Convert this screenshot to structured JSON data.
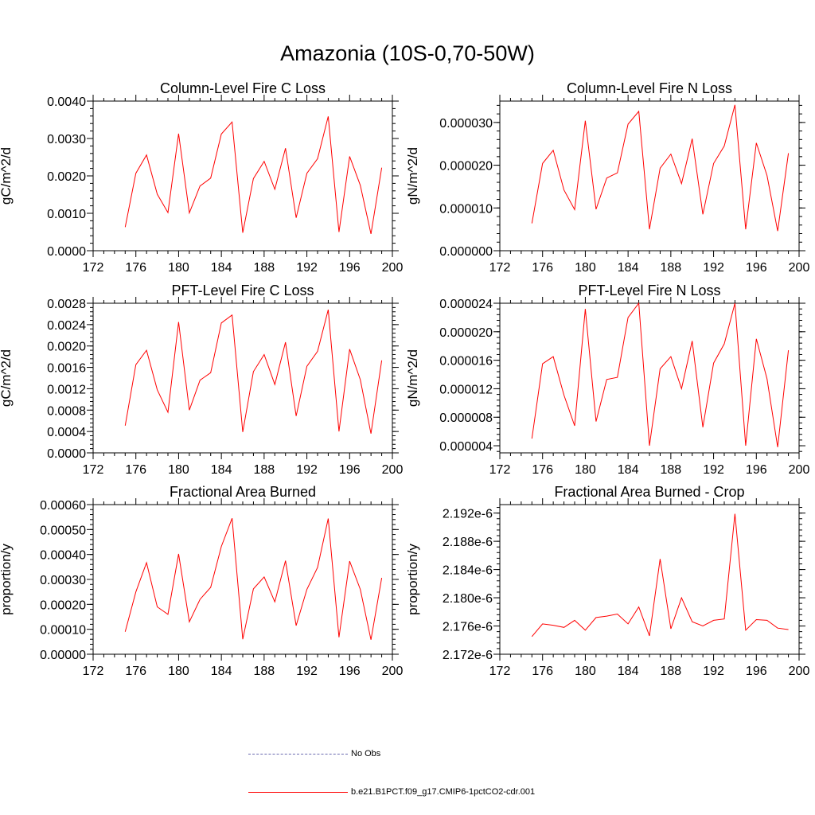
{
  "figure": {
    "title": "Amazonia (10S-0,70-50W)"
  },
  "colors": {
    "model": "#ff0000",
    "obs": "#6a6aaf",
    "axis": "#000000"
  },
  "legend": [
    {
      "label": "No Obs",
      "style": "dashed",
      "color": "#6a6aaf"
    },
    {
      "label": "b.e21.B1PCT.f09_g17.CMIP6-1pctCO2-cdr.001",
      "style": "solid",
      "color": "#ff0000"
    }
  ],
  "chart_data": [
    {
      "type": "line",
      "title": "Column-Level Fire C Loss",
      "ylabel": "gC/m^2/d",
      "xlim": [
        172,
        200
      ],
      "ylim": [
        0,
        0.004
      ],
      "xticks": [
        "172",
        "176",
        "180",
        "184",
        "188",
        "192",
        "196",
        "200"
      ],
      "yticks": [
        "0.0000",
        "0.0010",
        "0.0020",
        "0.0030",
        "0.0040"
      ],
      "x": [
        175,
        176,
        177,
        178,
        179,
        180,
        181,
        182,
        183,
        184,
        185,
        186,
        187,
        188,
        189,
        190,
        191,
        192,
        193,
        194,
        195,
        196,
        197,
        198,
        199
      ],
      "series": [
        {
          "values": [
            0.00063,
            0.00207,
            0.00256,
            0.00151,
            0.00102,
            0.00313,
            0.00101,
            0.00173,
            0.00194,
            0.00312,
            0.00344,
            0.00048,
            0.00193,
            0.00239,
            0.00164,
            0.00274,
            0.00088,
            0.00207,
            0.00246,
            0.00359,
            0.0005,
            0.00252,
            0.00175,
            0.00045,
            0.00222
          ]
        }
      ]
    },
    {
      "type": "line",
      "title": "Column-Level Fire N Loss",
      "ylabel": "gN/m^2/d",
      "xlim": [
        172,
        200
      ],
      "ylim": [
        0,
        3.5e-05
      ],
      "xticks": [
        "172",
        "176",
        "180",
        "184",
        "188",
        "192",
        "196",
        "200"
      ],
      "yticks": [
        "0.000000",
        "0.000010",
        "0.000020",
        "0.000030"
      ],
      "x": [
        175,
        176,
        177,
        178,
        179,
        180,
        181,
        182,
        183,
        184,
        185,
        186,
        187,
        188,
        189,
        190,
        191,
        192,
        193,
        194,
        195,
        196,
        197,
        198,
        199
      ],
      "series": [
        {
          "values": [
            6.4e-06,
            2.04e-05,
            2.35e-05,
            1.42e-05,
            9.6e-06,
            3.04e-05,
            9.7e-06,
            1.7e-05,
            1.82e-05,
            2.96e-05,
            3.26e-05,
            5e-06,
            1.93e-05,
            2.26e-05,
            1.57e-05,
            2.62e-05,
            8.5e-06,
            2.04e-05,
            2.45e-05,
            3.41e-05,
            5e-06,
            2.52e-05,
            1.76e-05,
            4.6e-06,
            2.28e-05
          ]
        }
      ]
    },
    {
      "type": "line",
      "title": "PFT-Level Fire C Loss",
      "ylabel": "gC/m^2/d",
      "xlim": [
        172,
        200
      ],
      "ylim": [
        0,
        0.0028
      ],
      "xticks": [
        "172",
        "176",
        "180",
        "184",
        "188",
        "192",
        "196",
        "200"
      ],
      "yticks": [
        "0.0000",
        "0.0004",
        "0.0008",
        "0.0012",
        "0.0016",
        "0.0020",
        "0.0024",
        "0.0028"
      ],
      "x": [
        175,
        176,
        177,
        178,
        179,
        180,
        181,
        182,
        183,
        184,
        185,
        186,
        187,
        188,
        189,
        190,
        191,
        192,
        193,
        194,
        195,
        196,
        197,
        198,
        199
      ],
      "series": [
        {
          "values": [
            0.00051,
            0.00165,
            0.00192,
            0.00118,
            0.00076,
            0.00245,
            0.0008,
            0.00136,
            0.0015,
            0.00243,
            0.00258,
            0.00039,
            0.00152,
            0.00184,
            0.00128,
            0.00207,
            0.00069,
            0.00162,
            0.0019,
            0.00268,
            0.0004,
            0.00194,
            0.00137,
            0.00036,
            0.00173
          ]
        }
      ]
    },
    {
      "type": "line",
      "title": "PFT-Level Fire N Loss",
      "ylabel": "gN/m^2/d",
      "xlim": [
        172,
        200
      ],
      "ylim": [
        3e-06,
        2.4e-05
      ],
      "xticks": [
        "172",
        "176",
        "180",
        "184",
        "188",
        "192",
        "196",
        "200"
      ],
      "yticks": [
        "0.000004",
        "0.000008",
        "0.000012",
        "0.000016",
        "0.000020",
        "0.000024"
      ],
      "x": [
        175,
        176,
        177,
        178,
        179,
        180,
        181,
        182,
        183,
        184,
        185,
        186,
        187,
        188,
        189,
        190,
        191,
        192,
        193,
        194,
        195,
        196,
        197,
        198,
        199
      ],
      "series": [
        {
          "values": [
            5e-06,
            1.55e-05,
            1.65e-05,
            1.11e-05,
            6.8e-06,
            2.32e-05,
            7.4e-06,
            1.33e-05,
            1.36e-05,
            2.2e-05,
            2.4e-05,
            4e-06,
            1.48e-05,
            1.65e-05,
            1.2e-05,
            1.87e-05,
            6.6e-06,
            1.56e-05,
            1.83e-05,
            2.4e-05,
            4e-06,
            1.9e-05,
            1.34e-05,
            3.8e-06,
            1.74e-05
          ]
        }
      ]
    },
    {
      "type": "line",
      "title": "Fractional Area Burned",
      "ylabel": "proportion/y",
      "xlim": [
        172,
        200
      ],
      "ylim": [
        0,
        0.0006
      ],
      "xticks": [
        "172",
        "176",
        "180",
        "184",
        "188",
        "192",
        "196",
        "200"
      ],
      "yticks": [
        "0.00000",
        "0.00010",
        "0.00020",
        "0.00030",
        "0.00040",
        "0.00050",
        "0.00060"
      ],
      "x": [
        175,
        176,
        177,
        178,
        179,
        180,
        181,
        182,
        183,
        184,
        185,
        186,
        187,
        188,
        189,
        190,
        191,
        192,
        193,
        194,
        195,
        196,
        197,
        198,
        199
      ],
      "series": [
        {
          "values": [
            9e-05,
            0.00025,
            0.000367,
            0.00019,
            0.00016,
            0.000402,
            0.00013,
            0.00022,
            0.000268,
            0.000432,
            0.000545,
            6e-05,
            0.000262,
            0.00031,
            0.00021,
            0.000375,
            0.000115,
            0.00026,
            0.000348,
            0.000544,
            6.8e-05,
            0.000373,
            0.00026,
            5.8e-05,
            0.000306
          ]
        }
      ]
    },
    {
      "type": "line",
      "title": "Fractional Area Burned - Crop",
      "ylabel": "proportion/y",
      "xlim": [
        172,
        200
      ],
      "ylim": [
        2.172e-06,
        2.1932e-06
      ],
      "xticks": [
        "172",
        "176",
        "180",
        "184",
        "188",
        "192",
        "196",
        "200"
      ],
      "yticks": [
        "2.172e-6",
        "2.176e-6",
        "2.180e-6",
        "2.184e-6",
        "2.188e-6",
        "2.192e-6"
      ],
      "x": [
        175,
        176,
        177,
        178,
        179,
        180,
        181,
        182,
        183,
        184,
        185,
        186,
        187,
        188,
        189,
        190,
        191,
        192,
        193,
        194,
        195,
        196,
        197,
        198,
        199
      ],
      "series": [
        {
          "values": [
            2.1745e-06,
            2.1763e-06,
            2.1761e-06,
            2.1758e-06,
            2.1768e-06,
            2.1754e-06,
            2.1772e-06,
            2.1774e-06,
            2.1777e-06,
            2.1763e-06,
            2.1787e-06,
            2.1746e-06,
            2.1855e-06,
            2.1756e-06,
            2.18e-06,
            2.1766e-06,
            2.176e-06,
            2.1768e-06,
            2.177e-06,
            2.1919e-06,
            2.1754e-06,
            2.1769e-06,
            2.1768e-06,
            2.1757e-06,
            2.1755e-06
          ]
        }
      ]
    }
  ]
}
